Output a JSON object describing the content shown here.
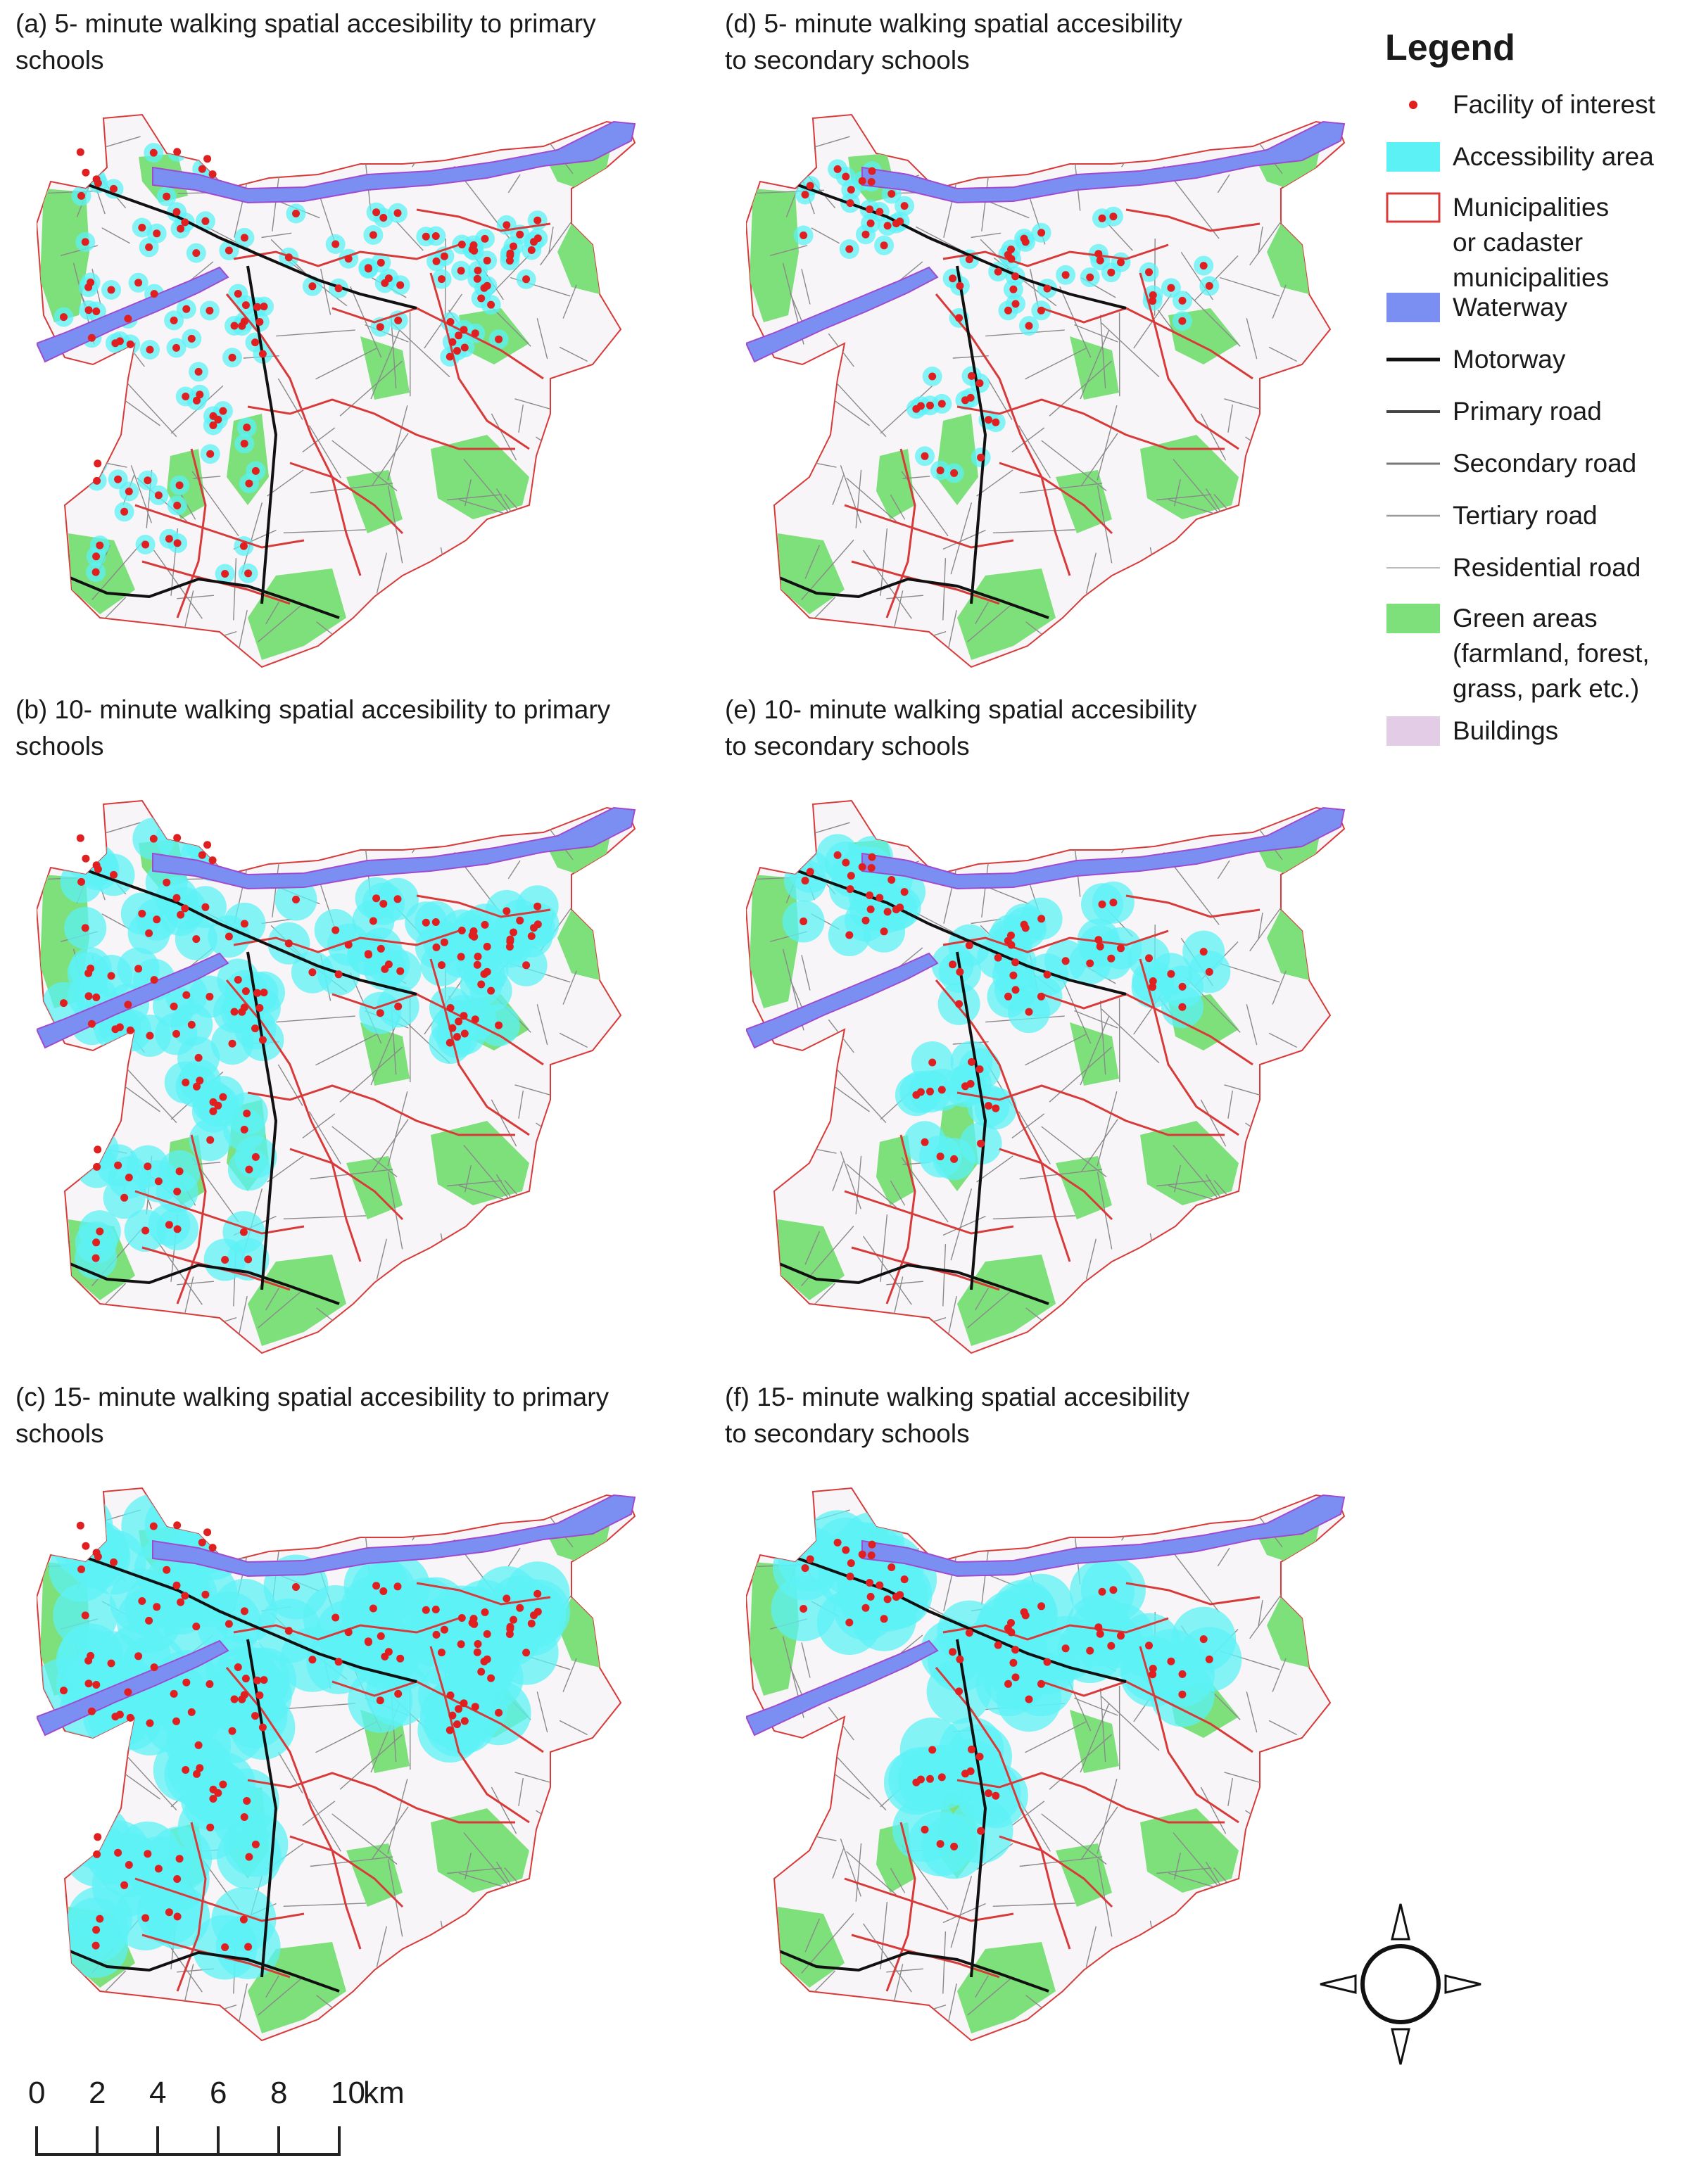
{
  "panels": [
    {
      "id": "a",
      "title": "(a) 5- minute walking spatial accesibility to primary\nschools",
      "minutes": 5,
      "school": "primary"
    },
    {
      "id": "b",
      "title": "(b) 10- minute walking spatial accesibility to primary\nschools",
      "minutes": 10,
      "school": "primary"
    },
    {
      "id": "c",
      "title": "(c) 15- minute walking spatial accesibility to primary\nschools",
      "minutes": 15,
      "school": "primary"
    },
    {
      "id": "d",
      "title": "(d) 5- minute walking spatial accesibility\nto secondary schools",
      "minutes": 5,
      "school": "secondary"
    },
    {
      "id": "e",
      "title": "(e) 10- minute walking spatial accesibility\nto secondary schools",
      "minutes": 10,
      "school": "secondary"
    },
    {
      "id": "f",
      "title": "(f) 15- minute walking spatial accesibility\nto secondary schools",
      "minutes": 15,
      "school": "secondary"
    }
  ],
  "legend": {
    "title": "Legend",
    "items": [
      {
        "label": "Facility of interest",
        "symbol": "point",
        "color": "#e02020"
      },
      {
        "label": "Accessibility area",
        "symbol": "fill",
        "color": "#5cf2f5"
      },
      {
        "label": "Municipalities\nor cadaster\nmunicipalities",
        "symbol": "outline",
        "color": "#d83a3a"
      },
      {
        "label": "Waterway",
        "symbol": "fill",
        "color": "#7b8ef2"
      },
      {
        "label": "Motorway",
        "symbol": "line",
        "color": "#111111"
      },
      {
        "label": "Primary road",
        "symbol": "line",
        "color": "#444444"
      },
      {
        "label": "Secondary road",
        "symbol": "line",
        "color": "#777777"
      },
      {
        "label": "Tertiary road",
        "symbol": "line",
        "color": "#999999"
      },
      {
        "label": "Residential road",
        "symbol": "line",
        "color": "#bbbbbb"
      },
      {
        "label": "Green areas\n(farmland, forest,\ngrass, park etc.)",
        "symbol": "fill",
        "color": "#7de07a"
      },
      {
        "label": "Buildings",
        "symbol": "fill",
        "color": "#e2cce6"
      }
    ]
  },
  "scale_bar": {
    "ticks": [
      "0",
      "2",
      "4",
      "6",
      "8",
      "10"
    ],
    "unit": "km"
  },
  "north_arrow": {
    "icon": "compass-rose-icon"
  },
  "colors": {
    "accessibility": "#5cf2f5",
    "water": "#7b8ef2",
    "green": "#7de07a",
    "boundary": "#d83a3a",
    "facility": "#e02020"
  }
}
